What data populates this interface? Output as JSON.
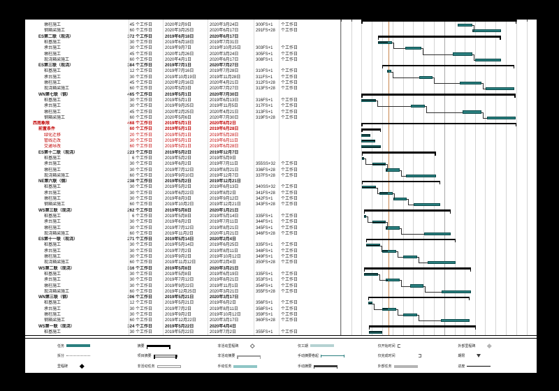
{
  "colors": {
    "task_bar": "#2a7f7f",
    "task_border": "#0c4b4b",
    "summary_bar": "#000000",
    "status_line": "#c8834b",
    "emphasis_red": "#c00000"
  },
  "gantt": {
    "timeline_start": "2019年3月1日",
    "timeline_end": "2020年10月1日",
    "status_date": "2019年7月19日",
    "overall_bar": {
      "start": "2019年5月1日",
      "finish": "2020年8月2日"
    }
  },
  "rows": [
    {
      "name": "墩柱施工",
      "level": 2,
      "duration": "45 个工作日",
      "start": "2020年2月9日",
      "finish": "2020年3月24日",
      "pred": "300FS+1",
      "slack": "个工作日"
    },
    {
      "name": "钢箱梁施工",
      "level": 2,
      "duration": "60 个工作日",
      "start": "2020年3月25日",
      "finish": "2020年6月17日",
      "pred": "291FS+28",
      "slack": "个工作日"
    },
    {
      "name": "ES第二联（现浇）",
      "level": 1,
      "duration": "372 个工作日",
      "start": "2019年6月18日",
      "finish": "2020年6月17日",
      "pred": "",
      "slack": ""
    },
    {
      "name": "桩基施工",
      "level": 2,
      "duration": "30 个工作日",
      "start": "2019年6月18日",
      "finish": "2019年7月31日",
      "pred": "",
      "slack": ""
    },
    {
      "name": "承台施工",
      "level": 2,
      "duration": "30 个工作日",
      "start": "2019年9月7日",
      "finish": "2019年10月25日",
      "pred": "303FS+1",
      "slack": "个工作日"
    },
    {
      "name": "墩柱施工",
      "level": 2,
      "duration": "45 个工作日",
      "start": "2020年1月26日",
      "finish": "2020年3月24日",
      "pred": "305FS+1",
      "slack": "个工作日"
    },
    {
      "name": "现浇箱梁施工",
      "level": 2,
      "duration": "60 个工作日",
      "start": "2020年4月1日",
      "finish": "2020年6月17日",
      "pred": "308FS+1",
      "slack": "个工作日"
    },
    {
      "name": "ES第三联（现浇）",
      "level": 1,
      "duration": "384 个工作日",
      "start": "2019年7月1日",
      "finish": "2020年7月27日",
      "pred": "",
      "slack": ""
    },
    {
      "name": "桩基施工",
      "level": 2,
      "duration": "12 个工作日",
      "start": "2019年7月16日",
      "finish": "2019年7月28日",
      "pred": "310FS+1",
      "slack": "个工作日"
    },
    {
      "name": "承台施工",
      "level": 2,
      "duration": "30 个工作日",
      "start": "2019年10月19日",
      "finish": "2019年11月28日",
      "pred": "311FS+1",
      "slack": "个工作日"
    },
    {
      "name": "墩柱施工",
      "level": 2,
      "duration": "45 个工作日",
      "start": "2020年2月16日",
      "finish": "2020年4月21日",
      "pred": "312FS+28",
      "slack": "个工作日"
    },
    {
      "name": "现浇箱梁施工",
      "level": 2,
      "duration": "60 个工作日",
      "start": "2020年5月3日",
      "finish": "2020年7月27日",
      "pred": "313FS+28",
      "slack": "个工作日"
    },
    {
      "name": "WN第七联（钢）",
      "level": 1,
      "duration": "465 个工作日",
      "start": "2019年5月1日",
      "finish": "2020年7月30日",
      "pred": "",
      "slack": ""
    },
    {
      "name": "桩基施工",
      "level": 2,
      "duration": "30 个工作日",
      "start": "2019年5月1日",
      "finish": "2019年6月13日",
      "pred": "316FS+1",
      "slack": "个工作日"
    },
    {
      "name": "承台施工",
      "level": 2,
      "duration": "30 个工作日",
      "start": "2019年9月25日",
      "finish": "2019年11月5日",
      "pred": "317FS+1",
      "slack": "个工作日"
    },
    {
      "name": "墩柱施工",
      "level": 2,
      "duration": "45 个工作日",
      "start": "2020年2月25日",
      "finish": "2020年4月21日",
      "pred": "313FS+1",
      "slack": "个工作日"
    },
    {
      "name": "钢箱梁施工",
      "level": 2,
      "duration": "60 个工作日",
      "start": "2020年5月6日",
      "finish": "2020年7月30日",
      "pred": "319FS+28",
      "slack": "个工作日"
    },
    {
      "name": "西南象限",
      "level": 0,
      "duration": "468 个工作日",
      "start": "2019年5月1日",
      "finish": "2020年8月2日",
      "pred": "",
      "slack": "",
      "emphasis": "red"
    },
    {
      "name": "前置条件",
      "level": 1,
      "duration": "60 个工作日",
      "start": "2019年5月1日",
      "finish": "2019年6月28日",
      "pred": "",
      "slack": "",
      "emphasis": "red"
    },
    {
      "name": "绿化迁移",
      "level": 2,
      "duration": "20 个工作日",
      "start": "2019年5月1日",
      "finish": "2019年5月28日",
      "pred": "",
      "slack": "",
      "emphasis": "red"
    },
    {
      "name": "管线迁改",
      "level": 2,
      "duration": "30 个工作日",
      "start": "2019年5月1日",
      "finish": "2019年6月11日",
      "pred": "",
      "slack": "",
      "emphasis": "red"
    },
    {
      "name": "交通导改",
      "level": 2,
      "duration": "60 个工作日",
      "start": "2019年5月1日",
      "finish": "2019年6月28日",
      "pred": "",
      "slack": "",
      "emphasis": "red"
    },
    {
      "name": "ES第十二联（现浇）",
      "level": 1,
      "duration": "223 个工作日",
      "start": "2019年5月2日",
      "finish": "2019年12月7日",
      "pred": "",
      "slack": ""
    },
    {
      "name": "桩基施工",
      "level": 2,
      "duration": "6 个工作日",
      "start": "2019年5月2日",
      "finish": "2019年5月9日",
      "pred": "",
      "slack": ""
    },
    {
      "name": "承台施工",
      "level": 2,
      "duration": "30 个工作日",
      "start": "2019年6月2日",
      "finish": "2019年7月11日",
      "pred": "355SS+32",
      "slack": "个工作日"
    },
    {
      "name": "墩柱施工",
      "level": 2,
      "duration": "30 个工作日",
      "start": "2019年7月12日",
      "finish": "2019年8月21日",
      "pred": "336FS+28",
      "slack": "个工作日"
    },
    {
      "name": "现浇箱梁施工",
      "level": 2,
      "duration": "60 个工作日",
      "start": "2019年9月10日",
      "finish": "2019年12月7日",
      "pred": "337FS+28",
      "slack": "个工作日"
    },
    {
      "name": "NE第六联（钢）",
      "level": 1,
      "duration": "238 个工作日",
      "start": "2019年5月2日",
      "finish": "2019年12月21日",
      "pred": "",
      "slack": ""
    },
    {
      "name": "桩基施工",
      "level": 2,
      "duration": "30 个工作日",
      "start": "2019年5月2日",
      "finish": "2019年6月13日",
      "pred": "340SS+32",
      "slack": "个工作日"
    },
    {
      "name": "承台施工",
      "level": 2,
      "duration": "30 个工作日",
      "start": "2019年6月22日",
      "finish": "2019年8月2日",
      "pred": "341FS+28",
      "slack": "个工作日"
    },
    {
      "name": "墩柱施工",
      "level": 2,
      "duration": "30 个工作日",
      "start": "2019年8月3日",
      "finish": "2019年9月12日",
      "pred": "342FS+1",
      "slack": "个工作日"
    },
    {
      "name": "钢箱梁施工",
      "level": 2,
      "duration": "60 个工作日",
      "start": "2019年10月2日",
      "finish": "2019年12月21日",
      "pred": "343FS+28",
      "slack": "个工作日"
    },
    {
      "name": "WS第三联（现浇）",
      "level": 1,
      "duration": "262 个工作日",
      "start": "2019年5月8日",
      "finish": "2020年1月21日",
      "pred": "",
      "slack": ""
    },
    {
      "name": "桩基施工",
      "level": 2,
      "duration": "6 个工作日",
      "start": "2019年5月8日",
      "finish": "2019年5月14日",
      "pred": "335FS+1",
      "slack": "个工作日"
    },
    {
      "name": "承台施工",
      "level": 2,
      "duration": "30 个工作日",
      "start": "2019年6月2日",
      "finish": "2019年7月11日",
      "pred": "344FS+1",
      "slack": "个工作日"
    },
    {
      "name": "墩柱施工",
      "level": 2,
      "duration": "30 个工作日",
      "start": "2019年7月12日",
      "finish": "2019年8月21日",
      "pred": "345FS+1",
      "slack": "个工作日"
    },
    {
      "name": "现浇箱梁施工",
      "level": 2,
      "duration": "60 个工作日",
      "start": "2019年11月2日",
      "finish": "2020年1月21日",
      "pred": "346FS+28",
      "slack": "个工作日"
    },
    {
      "name": "ES第十一联（现浇）",
      "level": 1,
      "duration": "271 个工作日",
      "start": "2019年5月14日",
      "finish": "2020年2月4日",
      "pred": "",
      "slack": ""
    },
    {
      "name": "桩基施工",
      "level": 2,
      "duration": "30 个工作日",
      "start": "2019年5月14日",
      "finish": "2019年6月25日",
      "pred": "335FS+1",
      "slack": "个工作日"
    },
    {
      "name": "承台施工",
      "level": 2,
      "duration": "30 个工作日",
      "start": "2019年7月2日",
      "finish": "2019年8月11日",
      "pred": "348FS+1",
      "slack": "个工作日"
    },
    {
      "name": "墩柱施工",
      "level": 2,
      "duration": "30 个工作日",
      "start": "2019年9月2日",
      "finish": "2019年10月12日",
      "pred": "349FS+1",
      "slack": "个工作日"
    },
    {
      "name": "现浇箱梁施工",
      "level": 2,
      "duration": "60 个工作日",
      "start": "2019年11月12日",
      "finish": "2020年2月4日",
      "pred": "350FS+28",
      "slack": "个工作日"
    },
    {
      "name": "WS第二联（现浇）",
      "level": 1,
      "duration": "316 个工作日",
      "start": "2019年5月8日",
      "finish": "2020年3月21日",
      "pred": "",
      "slack": ""
    },
    {
      "name": "桩基施工",
      "level": 2,
      "duration": "30 个工作日",
      "start": "2019年5月8日",
      "finish": "2019年6月19日",
      "pred": "335FS+1",
      "slack": "个工作日"
    },
    {
      "name": "承台施工",
      "level": 2,
      "duration": "30 个工作日",
      "start": "2019年7月12日",
      "finish": "2019年8月21日",
      "pred": "353FS+1",
      "slack": "个工作日"
    },
    {
      "name": "墩柱施工",
      "level": 2,
      "duration": "30 个工作日",
      "start": "2019年9月22日",
      "finish": "2019年11月1日",
      "pred": "354FS+1",
      "slack": "个工作日"
    },
    {
      "name": "现浇箱梁施工",
      "level": 2,
      "duration": "60 个工作日",
      "start": "2019年12月25日",
      "finish": "2020年3月21日",
      "pred": "355FS+28",
      "slack": "个工作日"
    },
    {
      "name": "WN第三联（钢）",
      "level": 1,
      "duration": "306 个工作日",
      "start": "2019年5月21日",
      "finish": "2020年3月17日",
      "pred": "",
      "slack": ""
    },
    {
      "name": "桩基施工",
      "level": 2,
      "duration": "12 个工作日",
      "start": "2019年5月21日",
      "finish": "2019年6月2日",
      "pred": "356FS+1",
      "slack": "个工作日"
    },
    {
      "name": "承台施工",
      "level": 2,
      "duration": "30 个工作日",
      "start": "2019年7月2日",
      "finish": "2019年8月11日",
      "pred": "358FS+1",
      "slack": "个工作日"
    },
    {
      "name": "墩柱施工",
      "level": 2,
      "duration": "30 个工作日",
      "start": "2019年9月2日",
      "finish": "2019年10月12日",
      "pred": "359FS+1",
      "slack": "个工作日"
    },
    {
      "name": "钢箱梁施工",
      "level": 2,
      "duration": "60 个工作日",
      "start": "2019年12月22日",
      "finish": "2020年3月17日",
      "pred": "360FS+28",
      "slack": "个工作日"
    },
    {
      "name": "WS第一联（现浇）",
      "level": 1,
      "duration": "324 个工作日",
      "start": "2019年5月22日",
      "finish": "2020年4月4日",
      "pred": "",
      "slack": ""
    },
    {
      "name": "桩基施工",
      "level": 2,
      "duration": "30 个工作日",
      "start": "2019年5月22日",
      "finish": "2019年7月2日",
      "pred": "355FS+1",
      "slack": "个工作日"
    }
  ],
  "legend": {
    "items": [
      {
        "label": "任务",
        "type": "task"
      },
      {
        "label": "拆分",
        "type": "split"
      },
      {
        "label": "里程碑",
        "type": "milestone"
      },
      {
        "label": "摘要",
        "type": "summary"
      },
      {
        "label": "项目摘要",
        "type": "project-summary"
      },
      {
        "label": "非活动任务",
        "type": "inactive-task"
      },
      {
        "label": "非活动里程碑",
        "type": "inactive-milestone"
      },
      {
        "label": "非活动摘要",
        "type": "inactive-summary"
      },
      {
        "label": "手动任务",
        "type": "manual-task"
      },
      {
        "label": "仅工期",
        "type": "duration-only"
      },
      {
        "label": "手动摘要卷起",
        "type": "manual-rollup"
      },
      {
        "label": "手动摘要",
        "type": "manual-summary"
      },
      {
        "label": "仅开始时间",
        "type": "start-only"
      },
      {
        "label": "仅完成时间",
        "type": "finish-only"
      },
      {
        "label": "外部任务",
        "type": "external-task"
      },
      {
        "label": "外部里程碑",
        "type": "external-milestone"
      },
      {
        "label": "期限",
        "type": "deadline"
      },
      {
        "label": "进度",
        "type": "progress"
      }
    ]
  }
}
